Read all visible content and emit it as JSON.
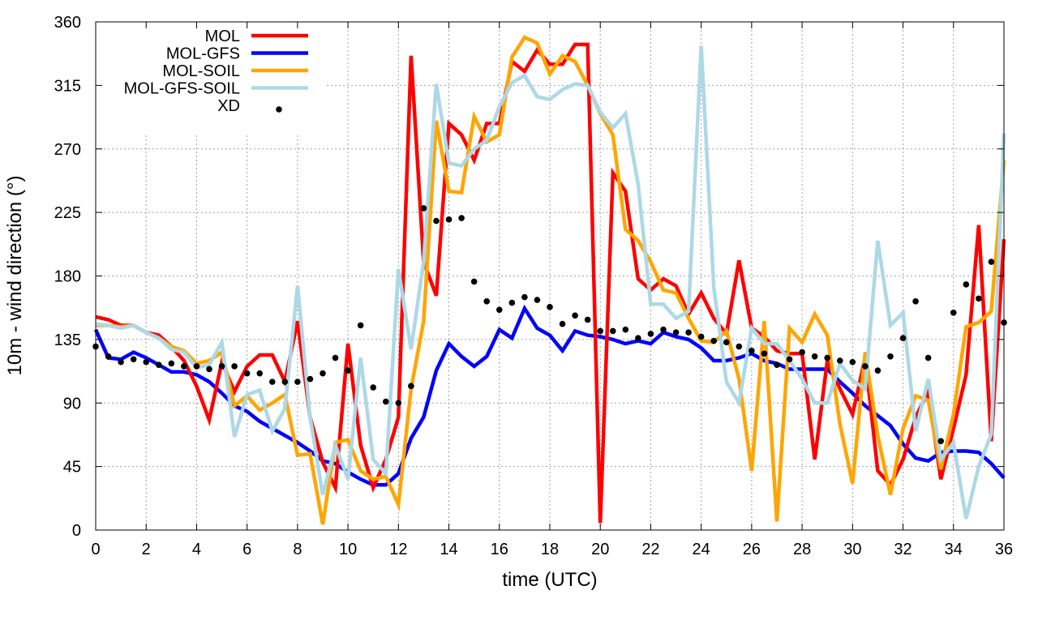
{
  "chart_data": {
    "type": "line",
    "title": "",
    "xlabel": "time (UTC)",
    "ylabel": "10m - wind direction (°)",
    "xlim": [
      0,
      36
    ],
    "ylim": [
      0,
      360
    ],
    "xticks": [
      0,
      2,
      4,
      6,
      8,
      10,
      12,
      14,
      16,
      18,
      20,
      22,
      24,
      26,
      28,
      30,
      32,
      34,
      36
    ],
    "yticks": [
      0,
      45,
      90,
      135,
      180,
      225,
      270,
      315,
      360
    ],
    "grid": true,
    "legend_position": "top-left",
    "x": [
      0,
      0.5,
      1,
      1.5,
      2,
      2.5,
      3,
      3.5,
      4,
      4.5,
      5,
      5.5,
      6,
      6.5,
      7,
      7.5,
      8,
      8.5,
      9,
      9.5,
      10,
      10.5,
      11,
      11.5,
      12,
      12.5,
      13,
      13.5,
      14,
      14.5,
      15,
      15.5,
      16,
      16.5,
      17,
      17.5,
      18,
      18.5,
      19,
      19.5,
      20,
      20.5,
      21,
      21.5,
      22,
      22.5,
      23,
      23.5,
      24,
      24.5,
      25,
      25.5,
      26,
      26.5,
      27,
      27.5,
      28,
      28.5,
      29,
      29.5,
      30,
      30.5,
      31,
      31.5,
      32,
      32.5,
      33,
      33.5,
      34,
      34.5,
      35,
      35.5,
      36
    ],
    "series": [
      {
        "name": "MOL",
        "style": "line",
        "color": "#ff0000",
        "values": [
          151,
          149,
          145,
          145,
          140,
          138,
          130,
          120,
          102,
          78,
          119,
          98,
          116,
          124,
          124,
          105,
          148,
          80,
          48,
          30,
          132,
          60,
          30,
          50,
          80,
          336,
          190,
          166,
          288,
          280,
          262,
          288,
          288,
          332,
          325,
          340,
          330,
          330,
          344,
          344,
          5,
          253,
          240,
          178,
          170,
          178,
          173,
          153,
          168,
          150,
          139,
          191,
          143,
          137,
          127,
          125,
          125,
          50,
          120,
          100,
          82,
          122,
          42,
          32,
          50,
          80,
          98,
          36,
          72,
          110,
          216,
          63,
          206
        ]
      },
      {
        "name": "MOL-GFS",
        "style": "line",
        "color": "#0000ff",
        "values": [
          142,
          122,
          121,
          126,
          122,
          117,
          112,
          112,
          110,
          105,
          97,
          88,
          84,
          77,
          72,
          67,
          62,
          56,
          49,
          47,
          41,
          36,
          32,
          32,
          40,
          65,
          80,
          113,
          132,
          123,
          116,
          123,
          142,
          136,
          157,
          143,
          138,
          127,
          141,
          138,
          137,
          135,
          132,
          134,
          132,
          140,
          137,
          135,
          129,
          120,
          120,
          122,
          125,
          120,
          118,
          114,
          114,
          114,
          114,
          105,
          97,
          88,
          81,
          74,
          61,
          51,
          49,
          55,
          56,
          56,
          55,
          47,
          37
        ]
      },
      {
        "name": "MOL-SOIL",
        "style": "line",
        "color": "#ffa500",
        "values": [
          145,
          145,
          144,
          145,
          140,
          136,
          130,
          127,
          118,
          120,
          126,
          88,
          95,
          85,
          90,
          96,
          53,
          54,
          4,
          62,
          64,
          42,
          36,
          38,
          18,
          100,
          148,
          290,
          240,
          239,
          293,
          275,
          280,
          335,
          349,
          345,
          323,
          336,
          332,
          315,
          295,
          280,
          213,
          205,
          190,
          170,
          168,
          150,
          134,
          133,
          141,
          107,
          42,
          148,
          6,
          143,
          133,
          153,
          138,
          75,
          33,
          126,
          67,
          25,
          72,
          95,
          92,
          43,
          82,
          144,
          147,
          155,
          262
        ]
      },
      {
        "name": "MOL-GFS-SOIL",
        "style": "line",
        "color": "#add8e6",
        "values": [
          146,
          145,
          143,
          145,
          140,
          136,
          128,
          126,
          115,
          117,
          133,
          66,
          96,
          99,
          70,
          86,
          173,
          80,
          25,
          60,
          36,
          122,
          50,
          40,
          185,
          128,
          190,
          316,
          260,
          258,
          270,
          276,
          300,
          317,
          322,
          307,
          305,
          312,
          316,
          315,
          296,
          285,
          295,
          245,
          160,
          160,
          150,
          155,
          343,
          172,
          105,
          90,
          143,
          132,
          132,
          120,
          107,
          90,
          90,
          118,
          106,
          100,
          205,
          145,
          154,
          70,
          107,
          50,
          62,
          8,
          45,
          68,
          281
        ]
      },
      {
        "name": "XD",
        "style": "points",
        "color": "#000000",
        "values": [
          130,
          123,
          119,
          121,
          119,
          117,
          118,
          116,
          116,
          114,
          116,
          116,
          111,
          111,
          105,
          105,
          105,
          107,
          111,
          122,
          113,
          145,
          101,
          91,
          90,
          102,
          228,
          219,
          220,
          221,
          176,
          162,
          156,
          161,
          165,
          163,
          158,
          146,
          152,
          149,
          141,
          141,
          142,
          136,
          139,
          142,
          140,
          140,
          137,
          134,
          133,
          130,
          127,
          125,
          117,
          121,
          126,
          123,
          122,
          120,
          119,
          116,
          113,
          123,
          136,
          162,
          122,
          63,
          154,
          174,
          164,
          190,
          147
        ]
      }
    ]
  }
}
